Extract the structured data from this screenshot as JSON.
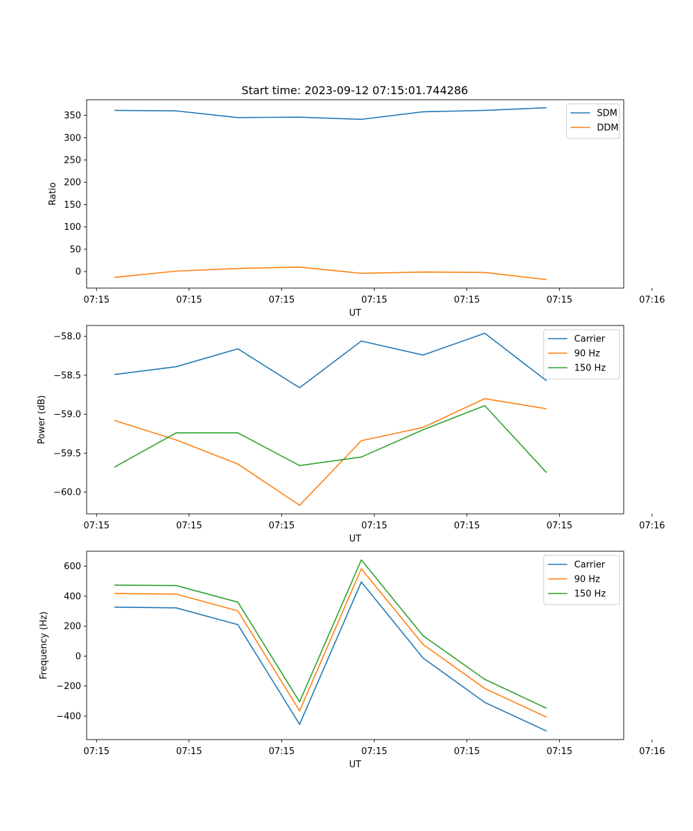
{
  "figure": {
    "title": "Start time: 2023-09-12 07:15:01.744286",
    "colors": {
      "c0": "#1f77b4",
      "c1": "#ff7f0e",
      "c2": "#2ca02c"
    }
  },
  "chart_data": [
    {
      "type": "line",
      "title": "Start time: 2023-09-12 07:15:01.744286",
      "xlabel": "UT",
      "ylabel": "Ratio",
      "x": [
        1,
        2,
        3,
        4,
        5,
        6,
        7,
        8
      ],
      "xlim": [
        0.55,
        9.25
      ],
      "x_ticks": [
        {
          "pos": 0.71,
          "label": "07:15"
        },
        {
          "pos": 2.21,
          "label": "07:15"
        },
        {
          "pos": 3.71,
          "label": "07:15"
        },
        {
          "pos": 5.21,
          "label": "07:15"
        },
        {
          "pos": 6.71,
          "label": "07:15"
        },
        {
          "pos": 8.21,
          "label": "07:15"
        },
        {
          "pos": 9.71,
          "label": "07:16"
        }
      ],
      "ylim": [
        -37,
        385
      ],
      "y_ticks": [
        0,
        50,
        100,
        150,
        200,
        250,
        300,
        350
      ],
      "legend": "top-right",
      "series": [
        {
          "name": "SDM",
          "color": "c0",
          "values": [
            361,
            360,
            345,
            346,
            341,
            358,
            361,
            367
          ]
        },
        {
          "name": "DDM",
          "color": "c1",
          "values": [
            -13,
            1,
            7,
            10,
            -4,
            -1,
            -2,
            -18
          ]
        }
      ]
    },
    {
      "type": "line",
      "title": "",
      "xlabel": "UT",
      "ylabel": "Power (dB)",
      "x": [
        1,
        2,
        3,
        4,
        5,
        6,
        7,
        8
      ],
      "xlim": [
        0.55,
        9.25
      ],
      "x_ticks": [
        {
          "pos": 0.71,
          "label": "07:15"
        },
        {
          "pos": 2.21,
          "label": "07:15"
        },
        {
          "pos": 3.71,
          "label": "07:15"
        },
        {
          "pos": 5.21,
          "label": "07:15"
        },
        {
          "pos": 6.71,
          "label": "07:15"
        },
        {
          "pos": 8.21,
          "label": "07:15"
        },
        {
          "pos": 9.71,
          "label": "07:16"
        }
      ],
      "ylim": [
        -60.28,
        -57.86
      ],
      "y_ticks": [
        -60.0,
        -59.5,
        -59.0,
        -58.5,
        -58.0
      ],
      "legend": "top-right",
      "series": [
        {
          "name": "Carrier",
          "color": "c0",
          "values": [
            -58.49,
            -58.39,
            -58.16,
            -58.66,
            -58.06,
            -58.24,
            -57.96,
            -58.57
          ]
        },
        {
          "name": "90 Hz",
          "color": "c1",
          "values": [
            -59.08,
            -59.33,
            -59.64,
            -60.17,
            -59.34,
            -59.17,
            -58.8,
            -58.93
          ]
        },
        {
          "name": "150 Hz",
          "color": "c2",
          "values": [
            -59.68,
            -59.24,
            -59.24,
            -59.66,
            -59.55,
            -59.2,
            -58.89,
            -59.75
          ]
        }
      ]
    },
    {
      "type": "line",
      "title": "",
      "xlabel": "UT",
      "ylabel": "Frequency (Hz)",
      "x": [
        1,
        2,
        3,
        4,
        5,
        6,
        7,
        8
      ],
      "xlim": [
        0.55,
        9.25
      ],
      "x_ticks": [
        {
          "pos": 0.71,
          "label": "07:15"
        },
        {
          "pos": 2.21,
          "label": "07:15"
        },
        {
          "pos": 3.71,
          "label": "07:15"
        },
        {
          "pos": 5.21,
          "label": "07:15"
        },
        {
          "pos": 6.71,
          "label": "07:15"
        },
        {
          "pos": 8.21,
          "label": "07:15"
        },
        {
          "pos": 9.71,
          "label": "07:16"
        }
      ],
      "ylim": [
        -557,
        700
      ],
      "y_ticks": [
        -400,
        -200,
        0,
        200,
        400,
        600
      ],
      "legend": "top-right",
      "series": [
        {
          "name": "Carrier",
          "color": "c0",
          "values": [
            327,
            322,
            210,
            -455,
            495,
            -13,
            -309,
            -500
          ]
        },
        {
          "name": "90 Hz",
          "color": "c1",
          "values": [
            418,
            414,
            302,
            -365,
            583,
            78,
            -216,
            -407
          ]
        },
        {
          "name": "150 Hz",
          "color": "c2",
          "values": [
            474,
            471,
            360,
            -305,
            642,
            136,
            -155,
            -348
          ]
        }
      ]
    }
  ]
}
